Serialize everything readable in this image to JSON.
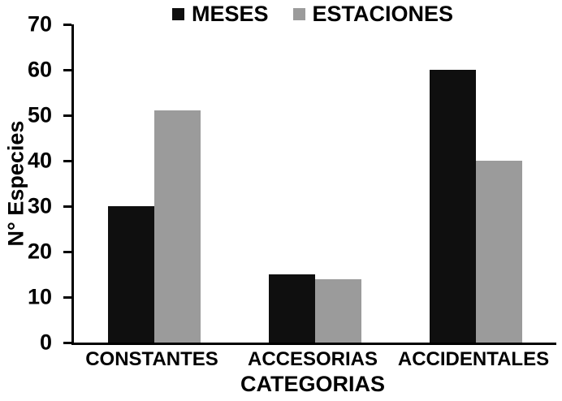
{
  "chart_data": {
    "type": "bar",
    "categories": [
      "CONSTANTES",
      "ACCESORIAS",
      "ACCIDENTALES"
    ],
    "series": [
      {
        "name": "MESES",
        "color": "#0f0f0f",
        "values": [
          30,
          15,
          60
        ]
      },
      {
        "name": "ESTACIONES",
        "color": "#9b9b9b",
        "values": [
          51,
          14,
          40
        ]
      }
    ],
    "title": "",
    "xlabel": "CATEGORIAS",
    "ylabel": "N° Especies",
    "ylim": [
      0,
      70
    ],
    "ytick_step": 10,
    "grid": false,
    "legend_position": "top"
  }
}
